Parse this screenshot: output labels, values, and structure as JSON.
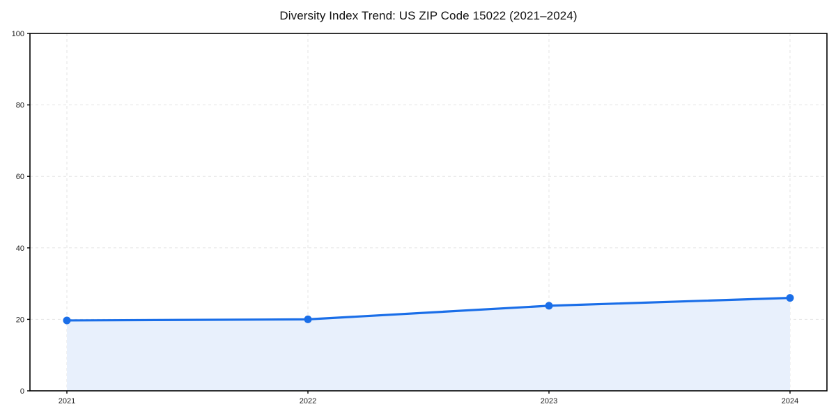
{
  "chart_data": {
    "type": "area",
    "title": "Diversity Index Trend: US ZIP Code 15022 (2021–2024)",
    "categories": [
      "2021",
      "2022",
      "2023",
      "2024"
    ],
    "series": [
      {
        "name": "Diversity Index",
        "values": [
          19.7,
          20.0,
          23.8,
          26.0
        ]
      }
    ],
    "xlabel": "",
    "ylabel": "",
    "ylim": [
      0,
      100
    ],
    "yticks": [
      0,
      20,
      40,
      60,
      80,
      100
    ],
    "grid": true,
    "grid_style": "dashed",
    "legend": "none",
    "marker": "circle",
    "colors": {
      "line": "#1a6ee8",
      "marker": "#1a6ee8",
      "fill": "#e8f0fc",
      "grid": "#e3e3e3",
      "axis": "#000000",
      "text": "#1a1a1a",
      "background": "#ffffff"
    }
  }
}
